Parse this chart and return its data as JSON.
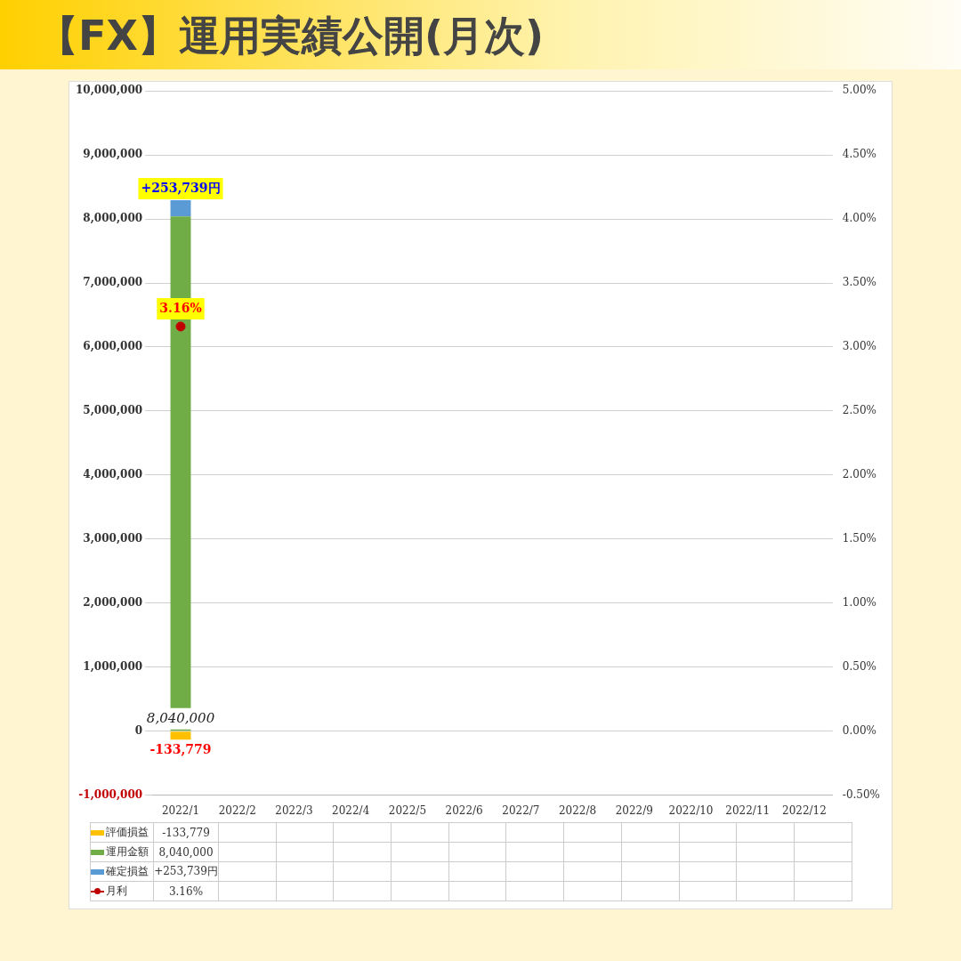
{
  "chart_data": {
    "type": "bar",
    "title": "【FX】運用実績公開(月次)",
    "stacked": true,
    "legend": "bottom",
    "grid": "y",
    "marker": "circle",
    "categories": [
      "2022/1",
      "2022/2",
      "2022/3",
      "2022/4",
      "2022/5",
      "2022/6",
      "2022/7",
      "2022/8",
      "2022/9",
      "2022/10",
      "2022/11",
      "2022/12"
    ],
    "series": [
      {
        "name": "評価損益",
        "color": "#ffc000",
        "values": [
          -133779,
          null,
          null,
          null,
          null,
          null,
          null,
          null,
          null,
          null,
          null,
          null
        ],
        "value_labels": [
          "-133,779",
          null,
          null,
          null,
          null,
          null,
          null,
          null,
          null,
          null,
          null,
          null
        ]
      },
      {
        "name": "運用金額",
        "color": "#70ad47",
        "values": [
          8040000,
          null,
          null,
          null,
          null,
          null,
          null,
          null,
          null,
          null,
          null,
          null
        ],
        "value_labels": [
          "8,040,000",
          null,
          null,
          null,
          null,
          null,
          null,
          null,
          null,
          null,
          null,
          null
        ]
      },
      {
        "name": "確定損益",
        "color": "#5b9bd5",
        "values": [
          253739,
          null,
          null,
          null,
          null,
          null,
          null,
          null,
          null,
          null,
          null,
          null
        ],
        "value_labels": [
          "+253,739円",
          null,
          null,
          null,
          null,
          null,
          null,
          null,
          null,
          null,
          null,
          null
        ]
      },
      {
        "name": "月利",
        "type": "line",
        "axis": "y2",
        "color": "#c00000",
        "values": [
          3.16,
          null,
          null,
          null,
          null,
          null,
          null,
          null,
          null,
          null,
          null,
          null
        ],
        "value_labels": [
          "3.16%",
          null,
          null,
          null,
          null,
          null,
          null,
          null,
          null,
          null,
          null,
          null
        ]
      }
    ],
    "ylim": [
      -1000000,
      10000000
    ],
    "yticks": [
      {
        "value": -1000000,
        "label": "-1,000,000"
      },
      0,
      {
        "value": 1000000,
        "label": "1,000,000"
      },
      {
        "value": 2000000,
        "label": "2,000,000"
      },
      {
        "value": 3000000,
        "label": "3,000,000"
      },
      {
        "value": 4000000,
        "label": "4,000,000"
      },
      {
        "value": 5000000,
        "label": "5,000,000"
      },
      {
        "value": 6000000,
        "label": "6,000,000"
      },
      {
        "value": 7000000,
        "label": "7,000,000"
      },
      {
        "value": 8000000,
        "label": "8,000,000"
      },
      {
        "value": 9000000,
        "label": "9,000,000"
      },
      {
        "value": 10000000,
        "label": "10,000,000"
      }
    ],
    "y2lim": [
      -0.5,
      5
    ],
    "y2ticks": [
      {
        "value": -0.5,
        "label": "-0.50%"
      },
      {
        "value": 0,
        "label": "0.00%"
      },
      {
        "value": 0.5,
        "label": "0.50%"
      },
      {
        "value": 1,
        "label": "1.00%"
      },
      {
        "value": 1.5,
        "label": "1.50%"
      },
      {
        "value": 2,
        "label": "2.00%"
      },
      {
        "value": 2.5,
        "label": "2.50%"
      },
      {
        "value": 3,
        "label": "3.00%"
      },
      {
        "value": 3.5,
        "label": "3.50%"
      },
      {
        "value": 4,
        "label": "4.00%"
      },
      {
        "value": 4.5,
        "label": "4.50%"
      },
      {
        "value": 5,
        "label": "5.00%"
      }
    ]
  }
}
